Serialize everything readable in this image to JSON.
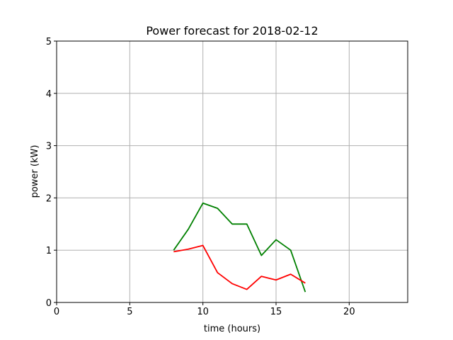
{
  "chart_data": {
    "type": "line",
    "title": "Power forecast for 2018-02-12",
    "xlabel": "time (hours)",
    "ylabel": "power (kW)",
    "xlim": [
      0,
      24
    ],
    "ylim": [
      0,
      5
    ],
    "xticks": [
      0,
      5,
      10,
      15,
      20
    ],
    "yticks": [
      0,
      1,
      2,
      3,
      4,
      5
    ],
    "grid": true,
    "series": [
      {
        "color": "#008000",
        "x": [
          8,
          9,
          10,
          11,
          12,
          13,
          14,
          15,
          16,
          17
        ],
        "y": [
          1.0,
          1.4,
          1.9,
          1.8,
          1.5,
          1.5,
          0.9,
          1.2,
          1.0,
          0.2
        ]
      },
      {
        "color": "#ff0000",
        "x": [
          8,
          9,
          10,
          11,
          12,
          13,
          14,
          15,
          16,
          17
        ],
        "y": [
          0.97,
          1.02,
          1.09,
          0.57,
          0.36,
          0.25,
          0.5,
          0.43,
          0.54,
          0.37
        ]
      }
    ]
  }
}
